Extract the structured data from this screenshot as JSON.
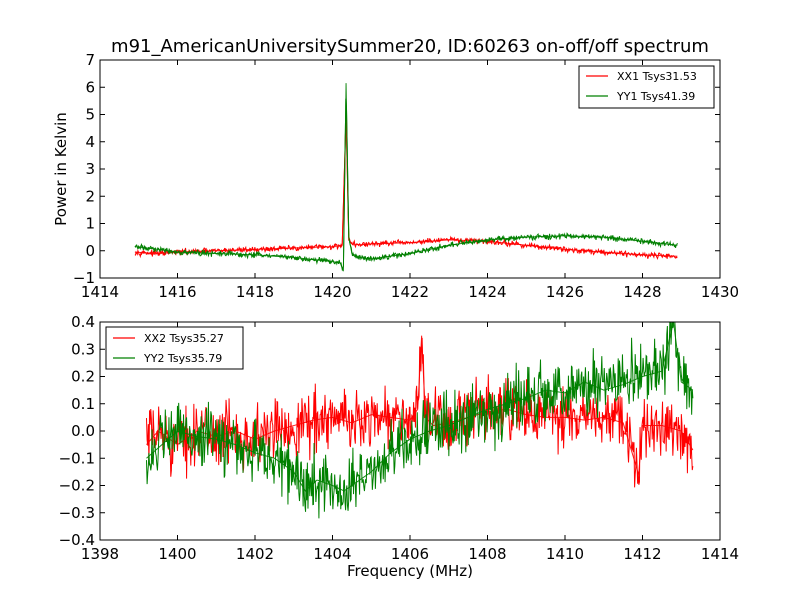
{
  "title": "m91_AmericanUniversitySummer20, ID:60263 on-off/off spectrum",
  "chart_data": [
    {
      "type": "line",
      "panel": "top",
      "title": "m91_AmericanUniversitySummer20, ID:60263 on-off/off spectrum",
      "xlabel": "",
      "ylabel": "Power in Kelvin",
      "xlim": [
        1414,
        1430
      ],
      "ylim": [
        -1,
        7
      ],
      "xticks": [
        "1414",
        "1416",
        "1418",
        "1420",
        "1422",
        "1424",
        "1426",
        "1428",
        "1430"
      ],
      "yticks": [
        "−1",
        "0",
        "1",
        "2",
        "3",
        "4",
        "5",
        "6",
        "7"
      ],
      "legend_position": "top-right",
      "grid": false,
      "series": [
        {
          "name": "XX1 Tsys31.53",
          "color": "#ff0000",
          "x": [
            1414.9,
            1415.5,
            1416.0,
            1417.0,
            1418.0,
            1419.0,
            1420.0,
            1420.25,
            1420.35,
            1420.42,
            1420.5,
            1420.7,
            1421.0,
            1422.0,
            1423.0,
            1424.0,
            1425.0,
            1426.0,
            1427.0,
            1428.0,
            1428.9
          ],
          "y": [
            -0.05,
            -0.1,
            -0.05,
            0.0,
            0.05,
            0.1,
            0.15,
            0.2,
            5.0,
            0.4,
            0.25,
            0.22,
            0.25,
            0.3,
            0.4,
            0.35,
            0.2,
            0.05,
            -0.05,
            -0.15,
            -0.2
          ]
        },
        {
          "name": "YY1 Tsys41.39",
          "color": "#008000",
          "x": [
            1414.9,
            1415.5,
            1416.0,
            1417.0,
            1418.0,
            1419.0,
            1420.0,
            1420.2,
            1420.28,
            1420.35,
            1420.42,
            1420.5,
            1420.7,
            1421.0,
            1422.0,
            1423.0,
            1424.0,
            1425.0,
            1426.0,
            1427.0,
            1428.0,
            1428.9
          ],
          "y": [
            0.15,
            0.05,
            -0.05,
            -0.1,
            -0.15,
            -0.25,
            -0.4,
            -0.45,
            -0.75,
            6.15,
            0.5,
            -0.1,
            -0.25,
            -0.3,
            -0.1,
            0.2,
            0.4,
            0.5,
            0.55,
            0.5,
            0.35,
            0.2
          ]
        }
      ]
    },
    {
      "type": "line",
      "panel": "bottom",
      "title": "",
      "xlabel": "Frequency (MHz)",
      "ylabel": "",
      "xlim": [
        1398,
        1414
      ],
      "ylim": [
        -0.4,
        0.4
      ],
      "xticks": [
        "1398",
        "1400",
        "1402",
        "1404",
        "1406",
        "1408",
        "1410",
        "1412",
        "1414"
      ],
      "yticks": [
        "−0.4",
        "−0.3",
        "−0.2",
        "−0.1",
        "0.0",
        "0.1",
        "0.2",
        "0.3",
        "0.4"
      ],
      "legend_position": "top-left",
      "grid": false,
      "series": [
        {
          "name": "XX2 Tsys35.27",
          "color": "#ff0000",
          "x": [
            1399.2,
            1399.5,
            1400.0,
            1400.5,
            1401.0,
            1401.5,
            1402.0,
            1402.5,
            1403.0,
            1403.5,
            1404.0,
            1404.5,
            1405.0,
            1405.5,
            1406.0,
            1406.2,
            1406.3,
            1406.4,
            1406.6,
            1407.0,
            1407.5,
            1408.0,
            1408.5,
            1409.0,
            1409.5,
            1410.0,
            1410.5,
            1411.0,
            1411.5,
            1411.9,
            1412.0,
            1412.5,
            1413.0,
            1413.3
          ],
          "y": [
            -0.05,
            0.0,
            -0.05,
            0.0,
            -0.02,
            0.0,
            -0.03,
            0.0,
            0.02,
            0.04,
            0.05,
            0.03,
            0.06,
            0.05,
            0.04,
            0.08,
            0.35,
            0.05,
            0.02,
            0.03,
            0.05,
            0.07,
            0.08,
            0.06,
            0.05,
            0.05,
            0.04,
            0.05,
            0.03,
            -0.16,
            0.02,
            0.02,
            0.0,
            -0.07
          ]
        },
        {
          "name": "YY2 Tsys35.79",
          "color": "#008000",
          "x": [
            1399.2,
            1399.6,
            1400.0,
            1400.5,
            1401.0,
            1401.5,
            1402.0,
            1402.5,
            1403.0,
            1403.3,
            1403.6,
            1404.0,
            1404.3,
            1404.7,
            1405.0,
            1405.5,
            1406.0,
            1406.5,
            1407.0,
            1407.5,
            1408.0,
            1408.5,
            1409.0,
            1409.5,
            1410.0,
            1410.5,
            1411.0,
            1411.5,
            1412.0,
            1412.5,
            1412.8,
            1413.0,
            1413.3
          ],
          "y": [
            -0.1,
            -0.05,
            0.0,
            -0.02,
            -0.03,
            -0.05,
            -0.08,
            -0.1,
            -0.15,
            -0.22,
            -0.18,
            -0.2,
            -0.22,
            -0.18,
            -0.15,
            -0.08,
            -0.03,
            0.0,
            0.02,
            0.05,
            0.08,
            0.1,
            0.12,
            0.15,
            0.14,
            0.18,
            0.15,
            0.17,
            0.2,
            0.22,
            0.4,
            0.18,
            0.15
          ]
        }
      ]
    }
  ]
}
